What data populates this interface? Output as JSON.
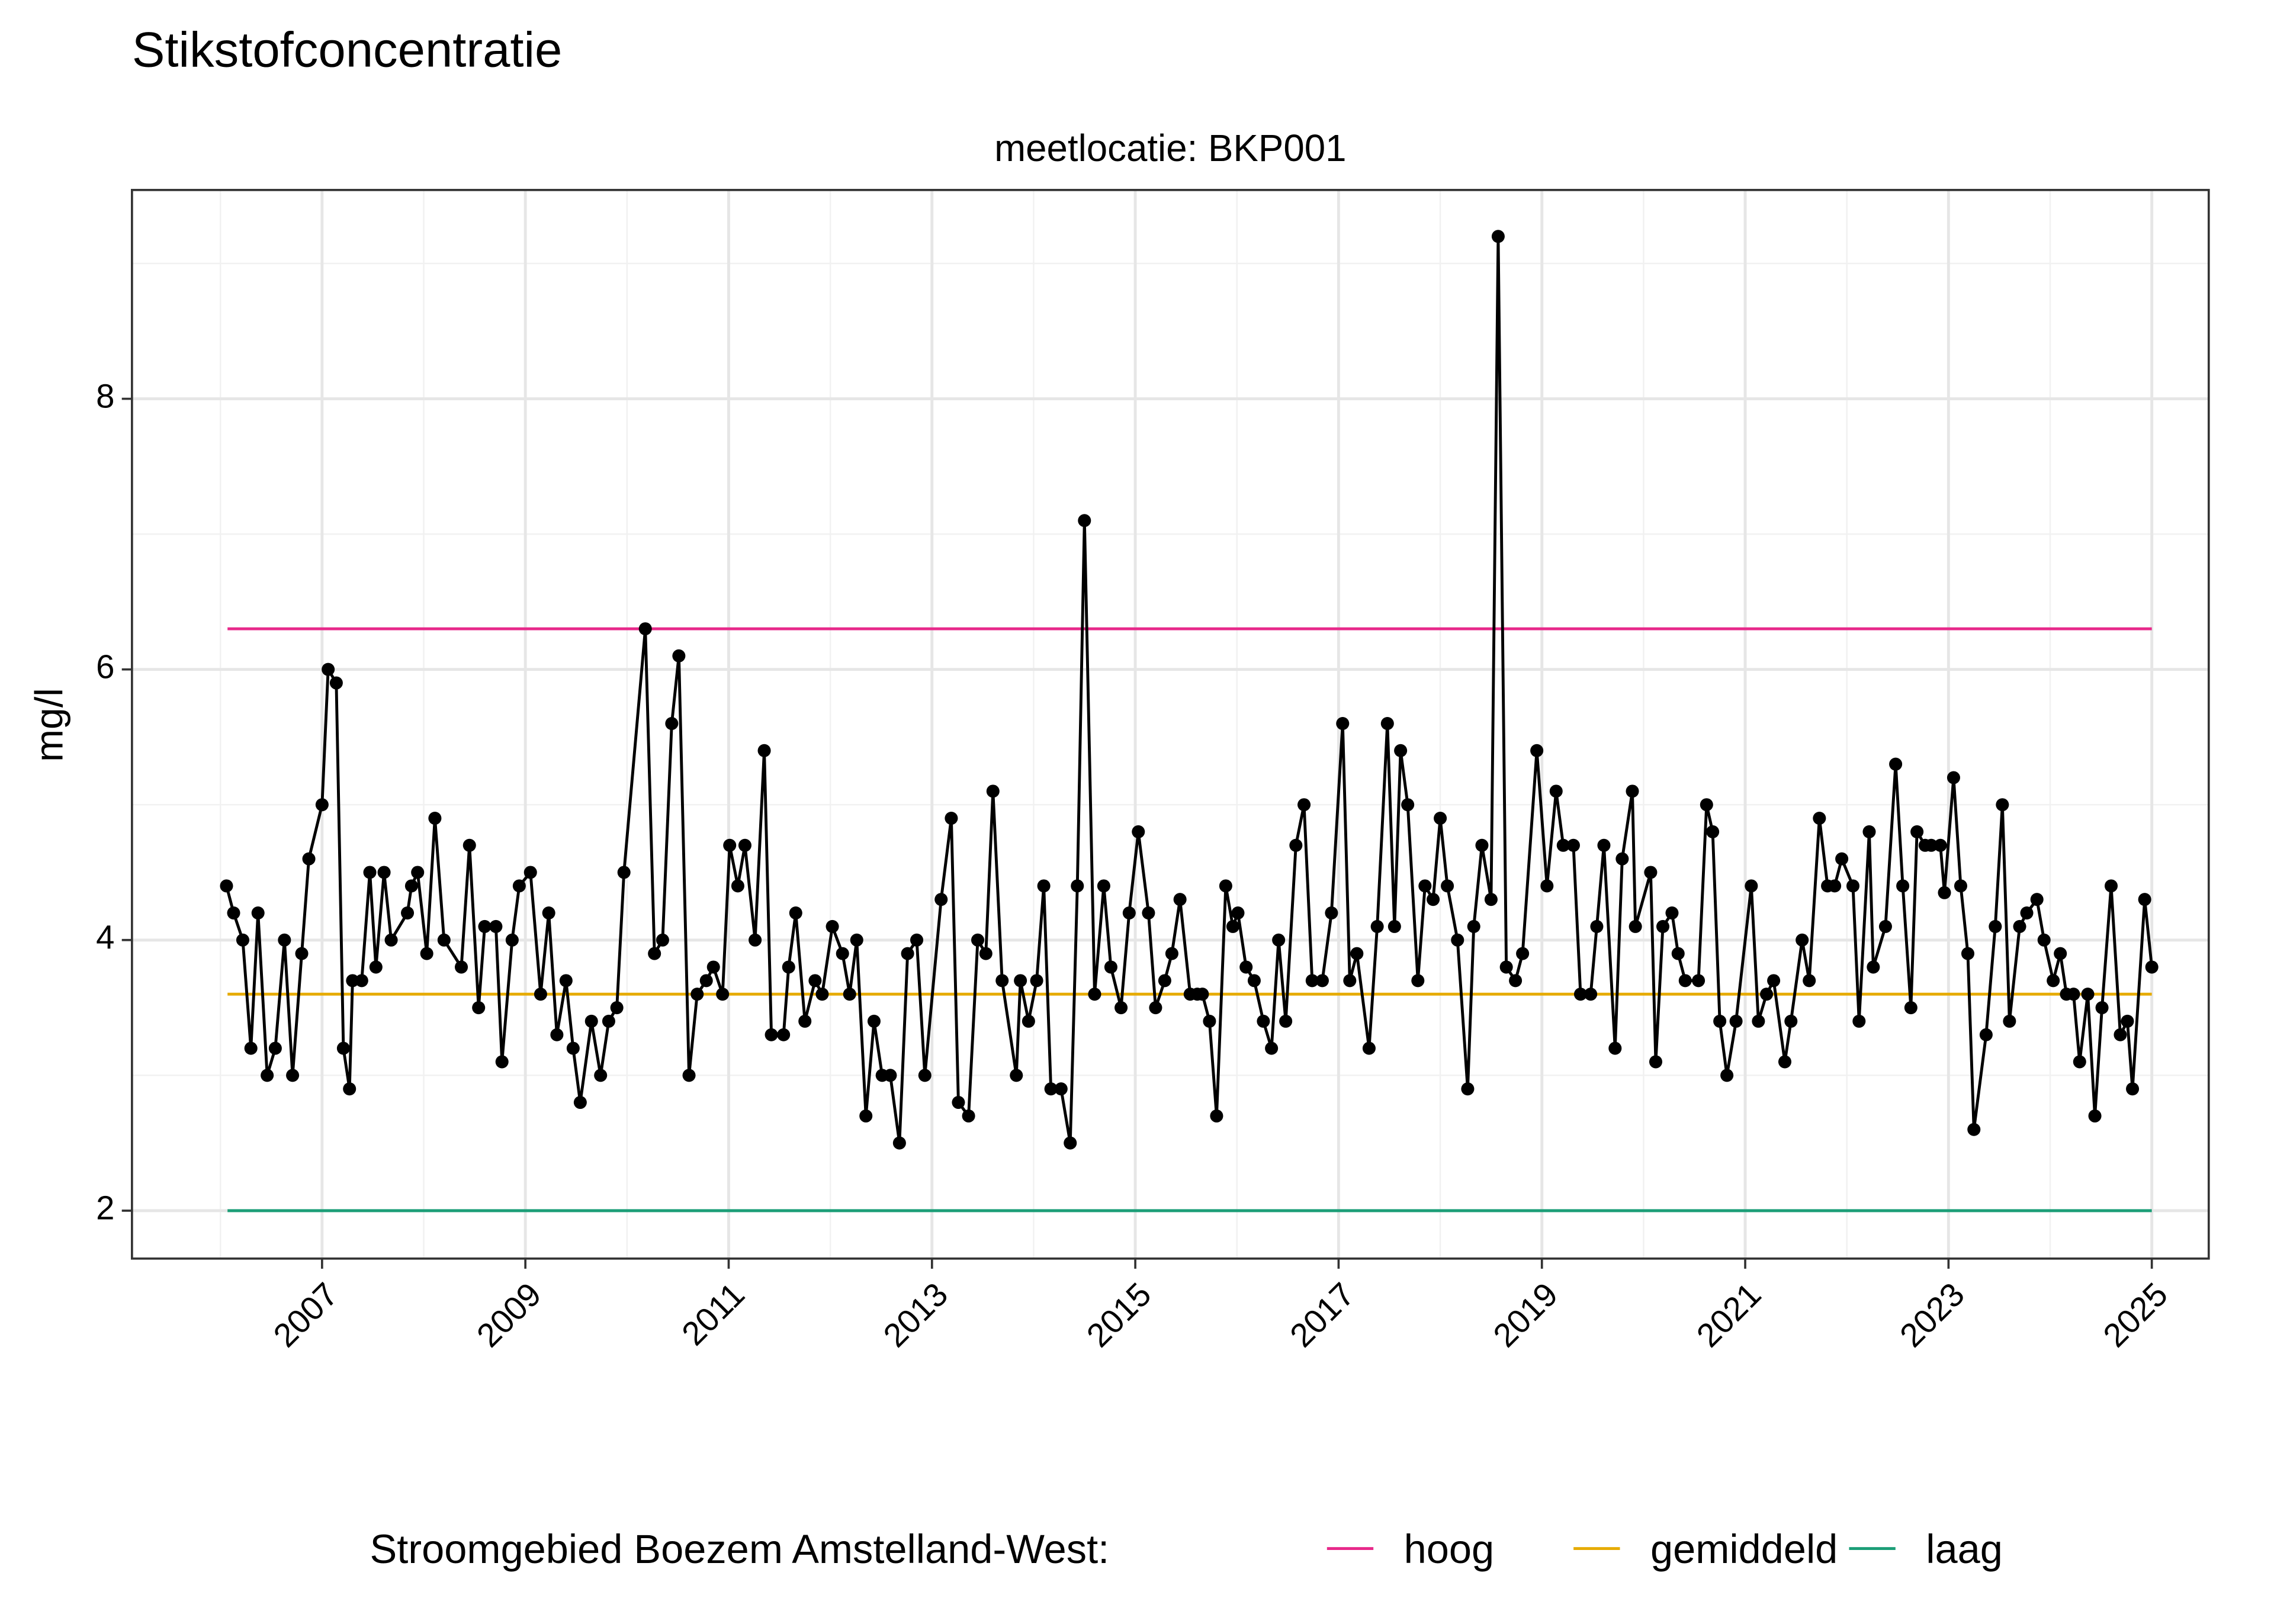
{
  "chart_data": {
    "type": "line",
    "title": "Stikstofconcentratie",
    "subtitle": "meetlocatie: BKP001",
    "ylabel": "mg/l",
    "legend_title": "Stroomgebied Boezem Amstelland-West:",
    "legend_position": "bottom",
    "grid": true,
    "xlim": [
      2005.13,
      2025.56
    ],
    "ylim": [
      1.646,
      9.543
    ],
    "xticks": [
      2007,
      2009,
      2011,
      2013,
      2015,
      2017,
      2019,
      2021,
      2023,
      2025
    ],
    "yticks": [
      2,
      4,
      6,
      8
    ],
    "x": [
      2006.06,
      2006.13,
      2006.22,
      2006.3,
      2006.37,
      2006.46,
      2006.54,
      2006.63,
      2006.71,
      2006.8,
      2006.87,
      2007.0,
      2007.06,
      2007.14,
      2007.21,
      2007.27,
      2007.3,
      2007.39,
      2007.47,
      2007.53,
      2007.61,
      2007.68,
      2007.84,
      2007.88,
      2007.94,
      2008.03,
      2008.11,
      2008.2,
      2008.37,
      2008.45,
      2008.54,
      2008.6,
      2008.71,
      2008.77,
      2008.87,
      2008.94,
      2009.05,
      2009.15,
      2009.23,
      2009.31,
      2009.4,
      2009.47,
      2009.54,
      2009.65,
      2009.74,
      2009.82,
      2009.9,
      2009.97,
      2010.18,
      2010.27,
      2010.35,
      2010.44,
      2010.51,
      2010.61,
      2010.69,
      2010.78,
      2010.85,
      2010.94,
      2011.01,
      2011.09,
      2011.16,
      2011.26,
      2011.35,
      2011.42,
      2011.54,
      2011.59,
      2011.66,
      2011.75,
      2011.85,
      2011.92,
      2012.02,
      2012.12,
      2012.19,
      2012.26,
      2012.35,
      2012.43,
      2012.51,
      2012.59,
      2012.68,
      2012.76,
      2012.85,
      2012.93,
      2013.09,
      2013.19,
      2013.26,
      2013.36,
      2013.45,
      2013.53,
      2013.6,
      2013.69,
      2013.83,
      2013.87,
      2013.95,
      2014.03,
      2014.1,
      2014.17,
      2014.27,
      2014.36,
      2014.43,
      2014.5,
      2014.6,
      2014.69,
      2014.76,
      2014.86,
      2014.94,
      2015.03,
      2015.13,
      2015.2,
      2015.29,
      2015.36,
      2015.44,
      2015.54,
      2015.61,
      2015.66,
      2015.73,
      2015.8,
      2015.89,
      2015.96,
      2016.01,
      2016.09,
      2016.17,
      2016.26,
      2016.34,
      2016.41,
      2016.48,
      2016.58,
      2016.66,
      2016.74,
      2016.84,
      2016.93,
      2017.04,
      2017.11,
      2017.18,
      2017.3,
      2017.38,
      2017.48,
      2017.55,
      2017.61,
      2017.68,
      2017.78,
      2017.85,
      2017.93,
      2018.0,
      2018.07,
      2018.17,
      2018.27,
      2018.33,
      2018.41,
      2018.5,
      2018.57,
      2018.65,
      2018.74,
      2018.81,
      2018.95,
      2019.05,
      2019.14,
      2019.21,
      2019.31,
      2019.38,
      2019.48,
      2019.54,
      2019.61,
      2019.72,
      2019.79,
      2019.89,
      2019.92,
      2020.07,
      2020.12,
      2020.19,
      2020.28,
      2020.34,
      2020.41,
      2020.54,
      2020.62,
      2020.68,
      2020.75,
      2020.82,
      2020.91,
      2021.06,
      2021.13,
      2021.21,
      2021.28,
      2021.39,
      2021.45,
      2021.56,
      2021.63,
      2021.73,
      2021.81,
      2021.88,
      2021.95,
      2022.06,
      2022.12,
      2022.22,
      2022.26,
      2022.38,
      2022.48,
      2022.55,
      2022.63,
      2022.69,
      2022.77,
      2022.83,
      2022.92,
      2022.96,
      2023.05,
      2023.12,
      2023.19,
      2023.25,
      2023.37,
      2023.46,
      2023.53,
      2023.6,
      2023.7,
      2023.77,
      2023.87,
      2023.94,
      2024.03,
      2024.1,
      2024.16,
      2024.23,
      2024.29,
      2024.37,
      2024.44,
      2024.51,
      2024.6,
      2024.69,
      2024.76,
      2024.81,
      2024.93,
      2025.0
    ],
    "series": [
      {
        "color": "#000000",
        "values": [
          4.4,
          4.2,
          4.0,
          3.2,
          4.2,
          3.0,
          3.2,
          4.0,
          3.0,
          3.9,
          4.6,
          5.0,
          6.0,
          5.9,
          3.2,
          2.9,
          3.7,
          3.7,
          4.5,
          3.8,
          4.5,
          4.0,
          4.2,
          4.4,
          4.5,
          3.9,
          4.9,
          4.0,
          3.8,
          4.7,
          3.5,
          4.1,
          4.1,
          3.1,
          4.0,
          4.4,
          4.5,
          3.6,
          4.2,
          3.3,
          3.7,
          3.2,
          2.8,
          3.4,
          3.0,
          3.4,
          3.5,
          4.5,
          6.3,
          3.9,
          4.0,
          5.6,
          6.1,
          3.0,
          3.6,
          3.7,
          3.8,
          3.6,
          4.7,
          4.4,
          4.7,
          4.0,
          5.4,
          3.3,
          3.3,
          3.8,
          4.2,
          3.4,
          3.7,
          3.6,
          4.1,
          3.9,
          3.6,
          4.0,
          2.7,
          3.4,
          3.0,
          3.0,
          2.5,
          3.9,
          4.0,
          3.0,
          4.3,
          4.9,
          2.8,
          2.7,
          4.0,
          3.9,
          5.1,
          3.7,
          3.0,
          3.7,
          3.4,
          3.7,
          4.4,
          2.9,
          2.9,
          2.5,
          4.4,
          7.1,
          3.6,
          4.4,
          3.8,
          3.5,
          4.2,
          4.8,
          4.2,
          3.5,
          3.7,
          3.9,
          4.3,
          3.6,
          3.6,
          3.6,
          3.4,
          2.7,
          4.4,
          4.1,
          4.2,
          3.8,
          3.7,
          3.4,
          3.2,
          4.0,
          3.4,
          4.7,
          5.0,
          3.7,
          3.7,
          4.2,
          5.6,
          3.7,
          3.9,
          3.2,
          4.1,
          5.6,
          4.1,
          5.4,
          5.0,
          3.7,
          4.4,
          4.3,
          4.9,
          4.4,
          4.0,
          2.9,
          4.1,
          4.7,
          4.3,
          9.2,
          3.8,
          3.7,
          3.9,
          5.4,
          4.4,
          5.1,
          4.7,
          4.7,
          3.6,
          3.6,
          4.1,
          4.7,
          3.2,
          4.6,
          5.1,
          4.1,
          4.5,
          3.1,
          4.1,
          4.2,
          3.9,
          3.7,
          3.7,
          5.0,
          4.8,
          3.4,
          3.0,
          3.4,
          4.4,
          3.4,
          3.6,
          3.7,
          3.1,
          3.4,
          4.0,
          3.7,
          4.9,
          4.4,
          4.4,
          4.6,
          4.4,
          3.4,
          4.8,
          3.8,
          4.1,
          5.3,
          4.4,
          3.5,
          4.8,
          4.7,
          4.7,
          4.7,
          4.35,
          5.2,
          4.4,
          3.9,
          2.6,
          3.3,
          4.1,
          5.0,
          3.4,
          4.1,
          4.2,
          4.3,
          4.0,
          3.7,
          3.9,
          3.6,
          3.6,
          3.1,
          3.6,
          2.7,
          3.5,
          4.4,
          3.3,
          3.4,
          2.9,
          4.3,
          3.8
        ]
      }
    ],
    "reference_lines": [
      {
        "name": "hoog",
        "color": "#e7298a",
        "value": 6.3,
        "x": [
          2006.07,
          2025.0
        ]
      },
      {
        "name": "gemiddeld",
        "color": "#e6ab02",
        "value": 3.6,
        "x": [
          2006.07,
          2025.0
        ]
      },
      {
        "name": "laag",
        "color": "#1b9e77",
        "value": 2,
        "x": [
          2006.07,
          2025.0
        ]
      }
    ]
  }
}
